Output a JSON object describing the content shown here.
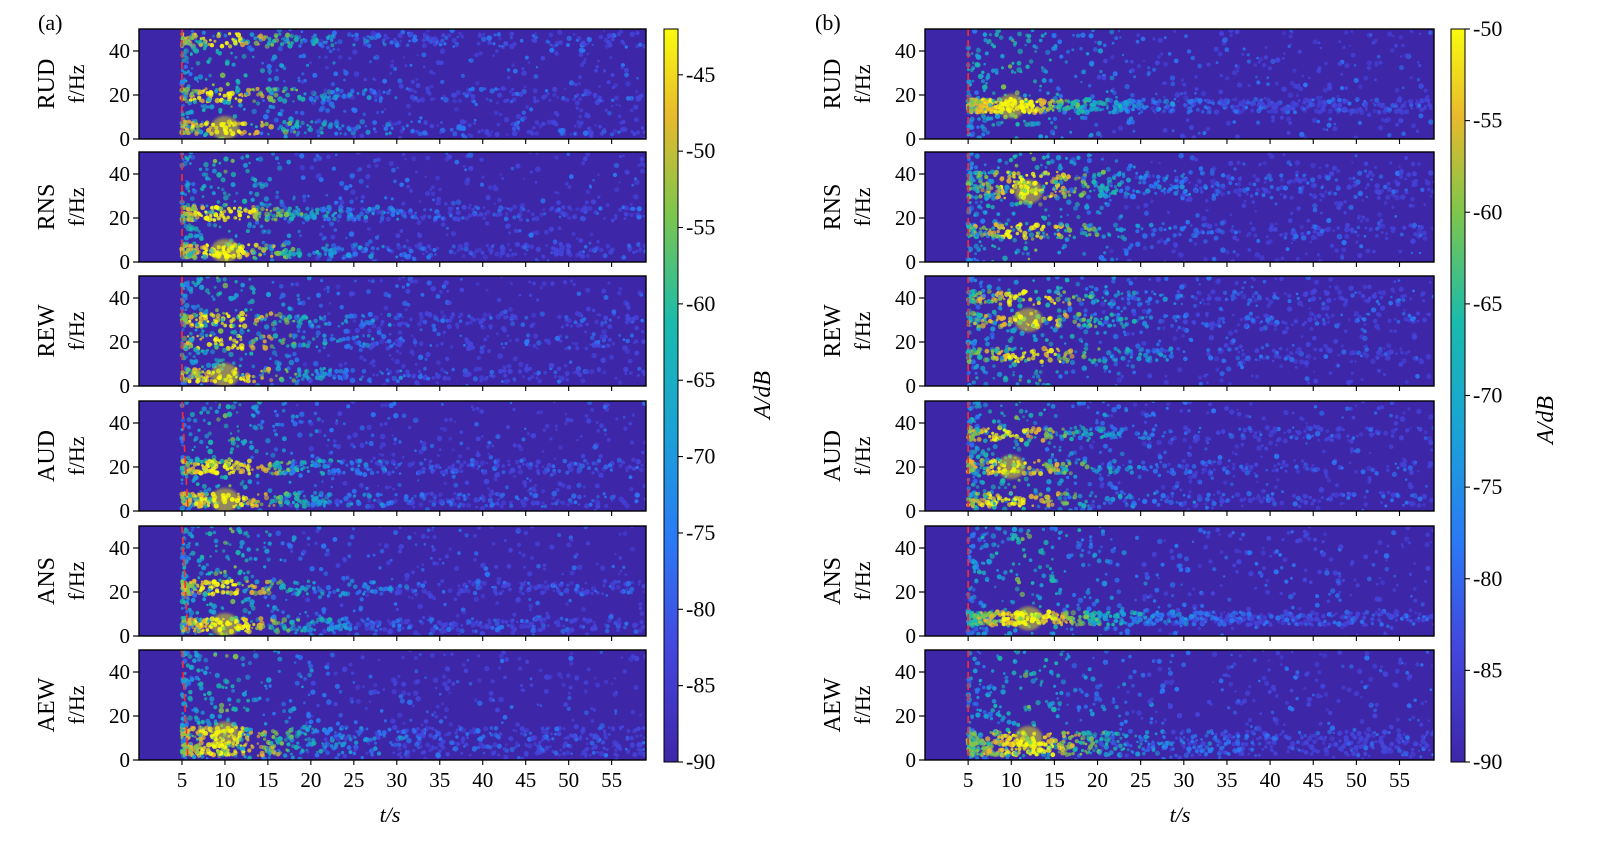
{
  "figure": {
    "panels": [
      {
        "label": "(a)",
        "subplots": [
          {
            "channel": "RUD",
            "ylabel": "f/Hz"
          },
          {
            "channel": "RNS",
            "ylabel": "f/Hz"
          },
          {
            "channel": "REW",
            "ylabel": "f/Hz"
          },
          {
            "channel": "AUD",
            "ylabel": "f/Hz"
          },
          {
            "channel": "ANS",
            "ylabel": "f/Hz"
          },
          {
            "channel": "AEW",
            "ylabel": "f/Hz"
          }
        ],
        "colorbar": {
          "label": "A/dB",
          "min": -90,
          "max": -42,
          "ticks": [
            "-45",
            "-50",
            "-55",
            "-60",
            "-65",
            "-70",
            "-75",
            "-80",
            "-85",
            "-90"
          ]
        }
      },
      {
        "label": "(b)",
        "subplots": [
          {
            "channel": "RUD",
            "ylabel": "f/Hz"
          },
          {
            "channel": "RNS",
            "ylabel": "f/Hz"
          },
          {
            "channel": "REW",
            "ylabel": "f/Hz"
          },
          {
            "channel": "AUD",
            "ylabel": "f/Hz"
          },
          {
            "channel": "ANS",
            "ylabel": "f/Hz"
          },
          {
            "channel": "AEW",
            "ylabel": "f/Hz"
          }
        ],
        "colorbar": {
          "label": "A/dB",
          "min": -90,
          "max": -50,
          "ticks": [
            "-50",
            "-55",
            "-60",
            "-65",
            "-70",
            "-75",
            "-80",
            "-85",
            "-90"
          ]
        }
      }
    ]
  },
  "chart_data": [
    {
      "type": "heatmap",
      "title": "(a)",
      "xlabel": "t/s",
      "ylabel": "f/Hz",
      "colorbar_label": "A/dB",
      "x_ticks": [
        "5",
        "10",
        "15",
        "20",
        "25",
        "30",
        "35",
        "40",
        "45",
        "50",
        "55"
      ],
      "y_ticks": [
        "0",
        "20",
        "40"
      ],
      "xlim": [
        0,
        59
      ],
      "ylim": [
        0,
        50
      ],
      "clim": [
        -90,
        -42
      ],
      "series": [
        {
          "name": "RUD",
          "arrival_s": 5,
          "bands_hz": [
            20,
            5,
            45
          ],
          "energy_peak_s": 10
        },
        {
          "name": "RNS",
          "arrival_s": 5,
          "bands_hz": [
            22,
            5
          ],
          "energy_peak_s": 10
        },
        {
          "name": "REW",
          "arrival_s": 5,
          "bands_hz": [
            20,
            5,
            30
          ],
          "energy_peak_s": 10
        },
        {
          "name": "AUD",
          "arrival_s": 5,
          "bands_hz": [
            20,
            5
          ],
          "energy_peak_s": 10
        },
        {
          "name": "ANS",
          "arrival_s": 5,
          "bands_hz": [
            22,
            5
          ],
          "energy_peak_s": 10
        },
        {
          "name": "AEW",
          "arrival_s": 5,
          "bands_hz": [
            5,
            12
          ],
          "energy_peak_s": 10
        }
      ]
    },
    {
      "type": "heatmap",
      "title": "(b)",
      "xlabel": "t/s",
      "ylabel": "f/Hz",
      "colorbar_label": "A/dB",
      "x_ticks": [
        "5",
        "10",
        "15",
        "20",
        "25",
        "30",
        "35",
        "40",
        "45",
        "50",
        "55"
      ],
      "y_ticks": [
        "0",
        "20",
        "40"
      ],
      "xlim": [
        0,
        59
      ],
      "ylim": [
        0,
        50
      ],
      "clim": [
        -90,
        -50
      ],
      "series": [
        {
          "name": "RUD",
          "arrival_s": 5,
          "bands_hz": [
            15
          ],
          "energy_peak_s": 10
        },
        {
          "name": "RNS",
          "arrival_s": 5,
          "bands_hz": [
            14,
            32,
            38
          ],
          "energy_peak_s": 12
        },
        {
          "name": "REW",
          "arrival_s": 5,
          "bands_hz": [
            14,
            30,
            40
          ],
          "energy_peak_s": 12
        },
        {
          "name": "AUD",
          "arrival_s": 5,
          "bands_hz": [
            5,
            20,
            35
          ],
          "energy_peak_s": 10
        },
        {
          "name": "ANS",
          "arrival_s": 5,
          "bands_hz": [
            8
          ],
          "energy_peak_s": 12
        },
        {
          "name": "AEW",
          "arrival_s": 5,
          "bands_hz": [
            5,
            10
          ],
          "energy_peak_s": 12
        }
      ]
    }
  ]
}
